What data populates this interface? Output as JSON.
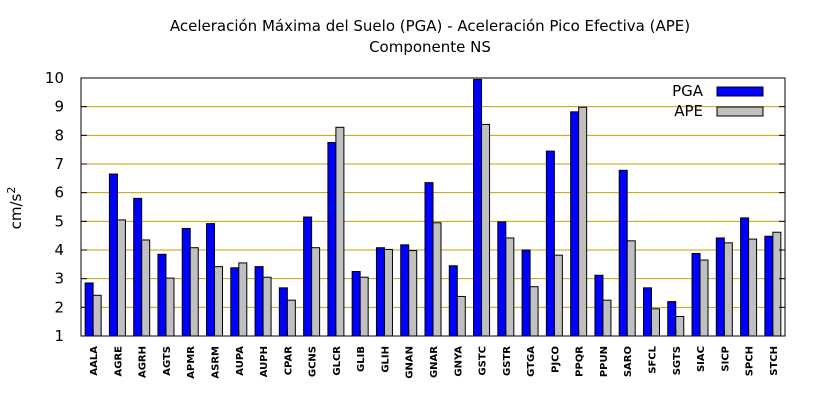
{
  "chart_data": {
    "type": "bar",
    "title": "Aceleración Máxima del Suelo (PGA) -  Aceleración Pico Efectiva (APE)",
    "subtitle": "Componente NS",
    "xlabel": "",
    "ylabel": "cm/s",
    "ylabel_superscript": "2",
    "ylim": [
      1,
      10
    ],
    "yticks": [
      1,
      2,
      3,
      4,
      5,
      6,
      7,
      8,
      9,
      10
    ],
    "grid": "horizontal",
    "legend": "top-right",
    "categories": [
      "AALA",
      "AGRE",
      "AGRH",
      "AGTS",
      "APMR",
      "ASRM",
      "AUPA",
      "AUPH",
      "CPAR",
      "GCNS",
      "GLCR",
      "GLIB",
      "GLIH",
      "GNAN",
      "GNAR",
      "GNYA",
      "GSTC",
      "GSTR",
      "GTGA",
      "PJCO",
      "PPQR",
      "PPUN",
      "SARO",
      "SFCL",
      "SGTS",
      "SIAC",
      "SICP",
      "SPCH",
      "STCH"
    ],
    "series": [
      {
        "name": "PGA",
        "color": "#0000ff",
        "values": [
          2.85,
          6.65,
          5.8,
          3.85,
          4.75,
          4.92,
          3.38,
          3.42,
          2.68,
          5.15,
          7.75,
          3.25,
          4.08,
          4.18,
          6.35,
          3.45,
          9.95,
          4.98,
          4.0,
          7.45,
          8.82,
          3.12,
          6.78,
          2.68,
          2.2,
          3.88,
          4.42,
          5.12,
          4.48
        ]
      },
      {
        "name": "APE",
        "color": "#c0c0c0",
        "values": [
          2.42,
          5.05,
          4.35,
          3.02,
          4.08,
          3.42,
          3.55,
          3.05,
          2.25,
          4.08,
          8.28,
          3.05,
          4.02,
          3.98,
          4.95,
          2.38,
          8.38,
          4.42,
          2.72,
          3.82,
          8.98,
          2.25,
          4.32,
          1.95,
          1.68,
          3.65,
          4.25,
          4.38,
          4.62
        ]
      }
    ]
  }
}
